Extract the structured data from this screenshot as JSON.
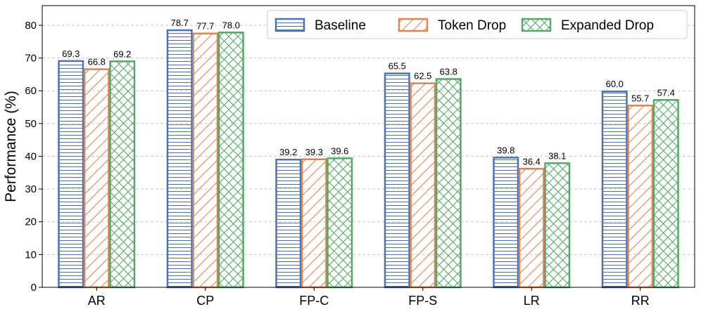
{
  "chart_data": {
    "type": "bar",
    "title": "",
    "xlabel": "",
    "ylabel": "Performance (%)",
    "ylim": [
      0,
      86
    ],
    "yticks": [
      0,
      10,
      20,
      30,
      40,
      50,
      60,
      70,
      80
    ],
    "grid": "y-dashed",
    "legend_position": "top-right",
    "categories": [
      "AR",
      "CP",
      "FP-C",
      "FP-S",
      "LR",
      "RR"
    ],
    "series": [
      {
        "name": "Baseline",
        "values": [
          69.3,
          78.7,
          39.2,
          65.5,
          39.8,
          60.0
        ],
        "labels": [
          "69.3",
          "78.7",
          "39.2",
          "65.5",
          "39.8",
          "60.0"
        ],
        "color": "#4c72b0",
        "hatch": "horizontal"
      },
      {
        "name": "Token Drop",
        "values": [
          66.8,
          77.7,
          39.3,
          62.5,
          36.4,
          55.7
        ],
        "labels": [
          "66.8",
          "77.7",
          "39.3",
          "62.5",
          "36.4",
          "55.7"
        ],
        "color": "#dd8452",
        "hatch": "diagonal"
      },
      {
        "name": "Expanded Drop",
        "values": [
          69.2,
          78.0,
          39.6,
          63.8,
          38.1,
          57.4
        ],
        "labels": [
          "69.2",
          "78.0",
          "39.6",
          "63.8",
          "38.1",
          "57.4"
        ],
        "color": "#55a868",
        "hatch": "crosshatch"
      }
    ]
  }
}
